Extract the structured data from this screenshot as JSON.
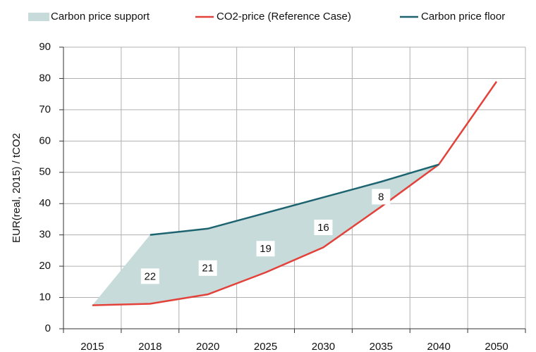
{
  "chart_data": {
    "type": "line",
    "ylabel": "EUR(real, 2015) / tCO2",
    "categories": [
      "2015",
      "2018",
      "2020",
      "2025",
      "2030",
      "2035",
      "2040",
      "2050"
    ],
    "ylim": [
      0,
      90
    ],
    "yticks": [
      0,
      10,
      20,
      30,
      40,
      50,
      60,
      70,
      80,
      90
    ],
    "grid": true,
    "series": [
      {
        "name": "Carbon price support",
        "color": "#c7dbdb",
        "kind": "area",
        "stack_on": 1,
        "values": [
          0,
          22,
          21,
          19,
          16,
          8,
          0,
          null
        ],
        "value_labels": [
          null,
          "22",
          "21",
          "19",
          "16",
          "8",
          null,
          null
        ]
      },
      {
        "name": "CO2-price (Reference Case)",
        "color": "#e2423a",
        "kind": "line",
        "values": [
          7.5,
          8,
          11,
          18,
          26,
          39,
          52.5,
          79
        ]
      },
      {
        "name": "Carbon price floor",
        "color": "#1d6470",
        "kind": "line",
        "values": [
          null,
          30,
          32,
          37,
          42,
          47,
          52.5,
          null
        ]
      }
    ]
  }
}
